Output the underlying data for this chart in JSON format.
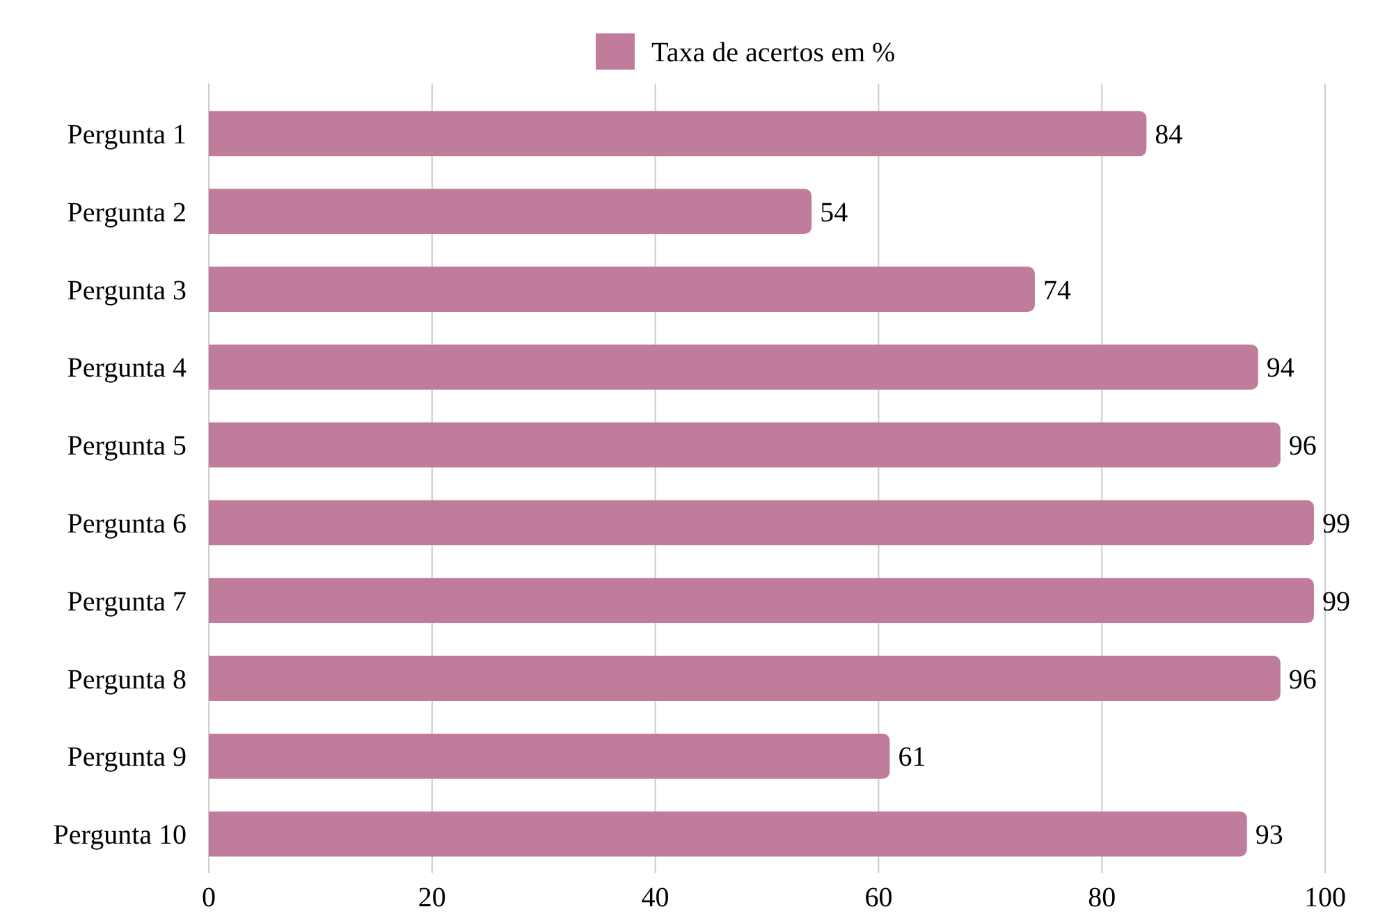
{
  "chart_data": {
    "type": "bar",
    "orientation": "horizontal",
    "categories": [
      "Pergunta 1",
      "Pergunta 2",
      "Pergunta 3",
      "Pergunta 4",
      "Pergunta 5",
      "Pergunta 6",
      "Pergunta 7",
      "Pergunta 8",
      "Pergunta 9",
      "Pergunta 10"
    ],
    "series": [
      {
        "name": "Taxa de acertos em %",
        "color": "#bf7d9b",
        "values": [
          84,
          54,
          74,
          94,
          96,
          99,
          99,
          96,
          61,
          93
        ]
      }
    ],
    "xlim": [
      0,
      100
    ],
    "xticks": [
      0,
      20,
      40,
      60,
      80,
      100
    ],
    "grid": "x",
    "legend": "top",
    "data_labels": true
  }
}
